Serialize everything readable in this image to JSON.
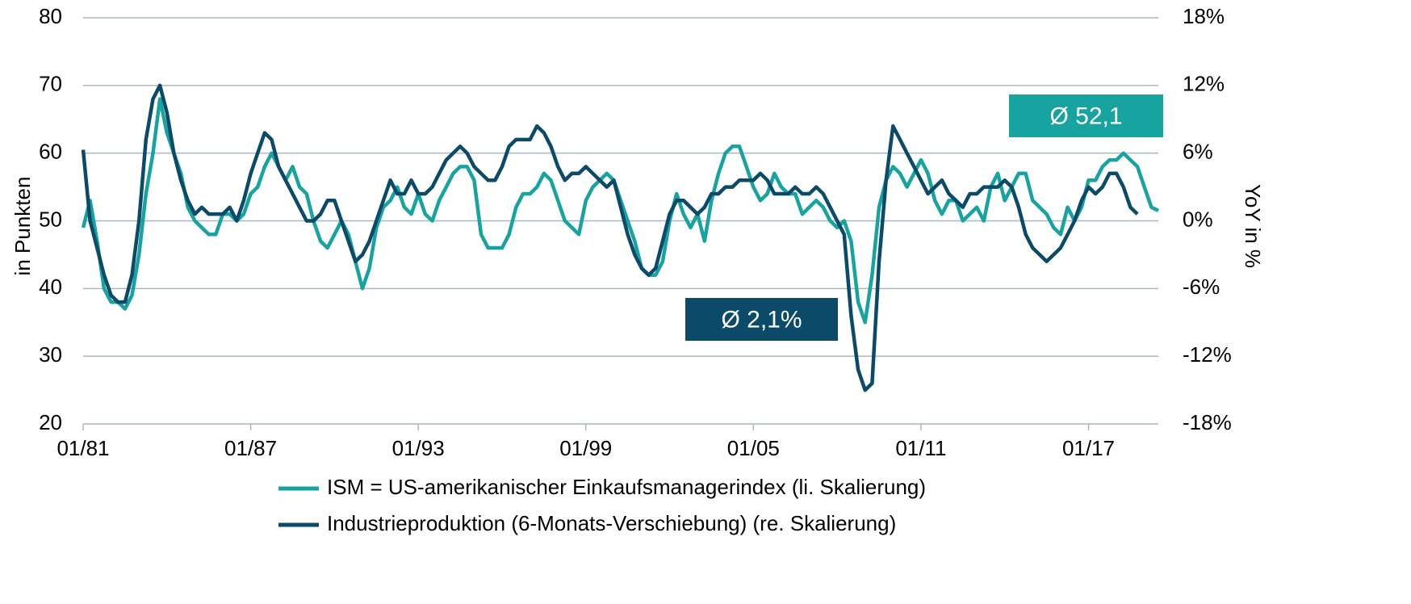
{
  "chart_data": {
    "type": "line",
    "y_label": "in Punkten",
    "y2_label": "YoY in %",
    "x": [
      "01/81",
      "04/81",
      "07/81",
      "10/81",
      "01/82",
      "04/82",
      "07/82",
      "10/82",
      "01/83",
      "04/83",
      "07/83",
      "10/83",
      "01/84",
      "04/84",
      "07/84",
      "10/84",
      "01/85",
      "04/85",
      "07/85",
      "10/85",
      "01/86",
      "04/86",
      "07/86",
      "10/86",
      "01/87",
      "04/87",
      "07/87",
      "10/87",
      "01/88",
      "04/88",
      "07/88",
      "10/88",
      "01/89",
      "04/89",
      "07/89",
      "10/89",
      "01/90",
      "04/90",
      "07/90",
      "10/90",
      "01/91",
      "04/91",
      "07/91",
      "10/91",
      "01/92",
      "04/92",
      "07/92",
      "10/92",
      "01/93",
      "04/93",
      "07/93",
      "10/93",
      "01/94",
      "04/94",
      "07/94",
      "10/94",
      "01/95",
      "04/95",
      "07/95",
      "10/95",
      "01/96",
      "04/96",
      "07/96",
      "10/96",
      "01/97",
      "04/97",
      "07/97",
      "10/97",
      "01/98",
      "04/98",
      "07/98",
      "10/98",
      "01/99",
      "04/99",
      "07/99",
      "10/99",
      "01/00",
      "04/00",
      "07/00",
      "10/00",
      "01/01",
      "04/01",
      "07/01",
      "10/01",
      "01/02",
      "04/02",
      "07/02",
      "10/02",
      "01/03",
      "04/03",
      "07/03",
      "10/03",
      "01/04",
      "04/04",
      "07/04",
      "10/04",
      "01/05",
      "04/05",
      "07/05",
      "10/05",
      "01/06",
      "04/06",
      "07/06",
      "10/06",
      "01/07",
      "04/07",
      "07/07",
      "10/07",
      "01/08",
      "04/08",
      "07/08",
      "10/08",
      "01/09",
      "04/09",
      "07/09",
      "10/09",
      "01/10",
      "04/10",
      "07/10",
      "10/10",
      "01/11",
      "04/11",
      "07/11",
      "10/11",
      "01/12",
      "04/12",
      "07/12",
      "10/12",
      "01/13",
      "04/13",
      "07/13",
      "10/13",
      "01/14",
      "04/14",
      "07/14",
      "10/14",
      "01/15",
      "04/15",
      "07/15",
      "10/15",
      "01/16",
      "04/16",
      "07/16",
      "10/16",
      "01/17",
      "04/17",
      "07/17",
      "10/17",
      "01/18",
      "04/18",
      "07/18",
      "10/18",
      "01/19",
      "04/19",
      "07/19"
    ],
    "xlim": [
      "01/81",
      "07/19"
    ],
    "xticks": [
      "01/81",
      "01/87",
      "01/93",
      "01/99",
      "01/05",
      "01/11",
      "01/17"
    ],
    "ylim": [
      20,
      80
    ],
    "yticks": [
      20,
      30,
      40,
      50,
      60,
      70,
      80
    ],
    "y2lim": [
      -18,
      18
    ],
    "y2ticks": [
      {
        "value": -18,
        "label": "-18%"
      },
      {
        "value": -12,
        "label": "-12%"
      },
      {
        "value": -6,
        "label": "-6%"
      },
      {
        "value": 0,
        "label": "0%"
      },
      {
        "value": 6,
        "label": "6%"
      },
      {
        "value": 12,
        "label": "12%"
      },
      {
        "value": 18,
        "label": "18%"
      }
    ],
    "grid": true,
    "series": [
      {
        "name": "ISM = US-amerikanischer Einkaufsmanagerindex (li. Skalierung)",
        "color": "#17a3a0",
        "axis": "y",
        "values": [
          49,
          53,
          47,
          40,
          38,
          38,
          37,
          39,
          45,
          54,
          60,
          68,
          63,
          60,
          57,
          52,
          50,
          49,
          48,
          48,
          51,
          51,
          50,
          51,
          54,
          55,
          58,
          60,
          58,
          56,
          58,
          55,
          54,
          50,
          47,
          46,
          48,
          50,
          48,
          44,
          40,
          43,
          49,
          52,
          53,
          55,
          52,
          51,
          54,
          51,
          50,
          53,
          55,
          57,
          58,
          58,
          56,
          48,
          46,
          46,
          46,
          48,
          52,
          54,
          54,
          55,
          57,
          56,
          53,
          50,
          49,
          48,
          53,
          55,
          56,
          57,
          56,
          53,
          50,
          47,
          43,
          42,
          42,
          44,
          50,
          54,
          51,
          49,
          51,
          47,
          53,
          57,
          60,
          61,
          61,
          58,
          55,
          53,
          54,
          57,
          55,
          54,
          54,
          51,
          52,
          53,
          52,
          50,
          49,
          50,
          47,
          38,
          35,
          42,
          52,
          56,
          58,
          57,
          55,
          57,
          59,
          57,
          53,
          51,
          53,
          53,
          50,
          51,
          52,
          50,
          55,
          57,
          53,
          55,
          57,
          57,
          53,
          52,
          51,
          49,
          48,
          52,
          50,
          52,
          56,
          56,
          58,
          59,
          59,
          60,
          59,
          58,
          55,
          52,
          51.5
        ]
      },
      {
        "name": "Industrieproduktion (6-Monats-Verschiebung) (re. Skalierung)",
        "color": "#0c4a6a",
        "axis": "y2",
        "values": [
          6.3,
          0,
          -2.4,
          -4.8,
          -6.6,
          -7.2,
          -7.2,
          -4.8,
          0,
          7.2,
          10.8,
          12,
          9.6,
          6,
          3.6,
          1.8,
          0.6,
          1.2,
          0.6,
          0.6,
          0.6,
          1.2,
          0,
          1.8,
          4.2,
          6,
          7.8,
          7.2,
          4.8,
          3.6,
          2.4,
          1.2,
          0,
          0,
          0.6,
          1.8,
          1.8,
          0,
          -1.8,
          -3.6,
          -3,
          -1.8,
          0,
          1.8,
          3.6,
          2.4,
          2.4,
          3.6,
          2.4,
          2.4,
          3,
          4.2,
          5.4,
          6,
          6.6,
          6,
          4.8,
          4.2,
          3.6,
          3.6,
          4.8,
          6.6,
          7.2,
          7.2,
          7.2,
          8.4,
          7.8,
          6.6,
          4.8,
          3.6,
          4.2,
          4.2,
          4.8,
          4.2,
          3.6,
          3,
          3.6,
          1.2,
          -1.2,
          -3,
          -4.2,
          -4.8,
          -4.2,
          -1.8,
          0.6,
          1.8,
          1.8,
          1.2,
          0.6,
          1.2,
          2.4,
          2.4,
          3,
          3,
          3.6,
          3.6,
          3.6,
          4.2,
          3.6,
          2.4,
          2.4,
          2.4,
          3,
          2.4,
          2.4,
          3,
          2.4,
          1.2,
          0,
          -1.2,
          -8.4,
          -13.2,
          -15,
          -14.4,
          -3.6,
          3.6,
          8.4,
          7.2,
          6,
          4.8,
          3.6,
          2.4,
          3,
          3.6,
          2.4,
          1.8,
          1.2,
          2.4,
          2.4,
          3,
          3,
          3,
          3.6,
          3,
          1.2,
          -1.2,
          -2.4,
          -3,
          -3.6,
          -3,
          -2.4,
          -1.2,
          0,
          1.8,
          3,
          2.4,
          3,
          4.2,
          4.2,
          3,
          1.2,
          0.6,
          null,
          null,
          null
        ]
      }
    ],
    "annotations": [
      {
        "text": "Ø 52,1",
        "color": "#17a3a0"
      },
      {
        "text": "Ø 2,1%",
        "color": "#0c4a6a"
      }
    ]
  }
}
